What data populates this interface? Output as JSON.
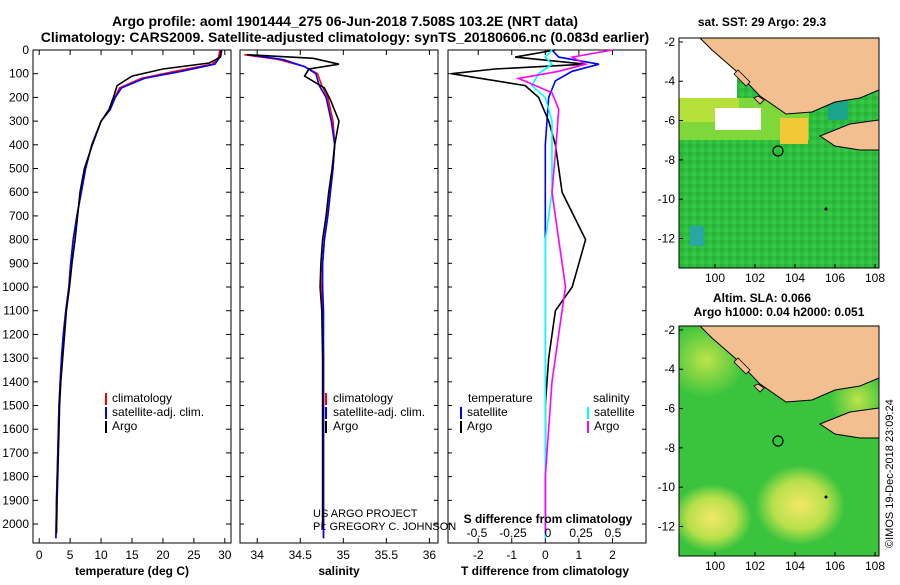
{
  "title_line1": "Argo profile: aoml 1901444_275 06-Jun-2018 7.508S 103.2E (NRT data)",
  "title_line2": "Climatology: CARS2009. Satellite-adjusted climatology: synTS_20180606.nc (0.083d earlier)",
  "project_line1": "US ARGO PROJECT",
  "project_line2": "PI: GREGORY C. JOHNSON",
  "imos_credit": "©IMOS 19-Dec-2018 23:09:24",
  "colors": {
    "climatology": "#ff0000",
    "satellite": "#0000ff",
    "argo": "#000000",
    "sal_satellite": "#00ffff",
    "sal_argo": "#ff00ff",
    "land": "#f4bf8f"
  },
  "chart_data": [
    {
      "type": "line",
      "panel": "temperature",
      "xlabel": "temperature (deg C)",
      "xlim": [
        -1,
        31
      ],
      "xticks": [
        0,
        5,
        10,
        15,
        20,
        25,
        30
      ],
      "ylim": [
        2080,
        0
      ],
      "yticks": [
        0,
        100,
        200,
        300,
        400,
        500,
        600,
        700,
        800,
        900,
        1000,
        1100,
        1200,
        1300,
        1400,
        1500,
        1600,
        1700,
        1800,
        1900,
        2000
      ],
      "legend": [
        "climatology",
        "satellite-adj. clim.",
        "Argo"
      ],
      "series": [
        {
          "name": "climatology",
          "x": [
            29.2,
            29.0,
            28.0,
            22.0,
            16.5,
            13.0,
            12.2,
            11.5,
            10.0,
            8.5,
            7.5,
            6.8,
            6.1,
            5.5,
            5.1,
            4.8,
            4.3,
            3.9,
            3.6,
            3.4,
            3.2,
            3.0,
            2.8,
            2.7
          ],
          "y": [
            0,
            30,
            60,
            90,
            120,
            160,
            200,
            250,
            300,
            400,
            500,
            600,
            700,
            800,
            900,
            1000,
            1100,
            1200,
            1300,
            1400,
            1500,
            1700,
            1900,
            2060
          ]
        },
        {
          "name": "satellite-adj. clim.",
          "x": [
            29.4,
            29.2,
            28.4,
            23.0,
            17.0,
            13.3,
            12.3,
            11.5,
            10.0,
            8.5,
            7.5,
            6.8,
            6.1,
            5.5,
            5.1,
            4.8,
            4.3,
            3.9,
            3.6,
            3.4,
            3.2,
            3.0,
            2.8,
            2.7
          ],
          "y": [
            0,
            30,
            60,
            90,
            120,
            160,
            200,
            250,
            300,
            400,
            500,
            600,
            700,
            800,
            900,
            1000,
            1100,
            1200,
            1300,
            1400,
            1500,
            1700,
            1900,
            2060
          ]
        },
        {
          "name": "Argo",
          "x": [
            29.5,
            29.3,
            27.5,
            20.0,
            15.0,
            12.6,
            12.0,
            11.3,
            10.0,
            8.6,
            7.3,
            6.6,
            6.2,
            5.8,
            5.3,
            4.9,
            4.4,
            4.1,
            3.8,
            3.5,
            3.3,
            3.1,
            2.9,
            2.8
          ],
          "y": [
            0,
            30,
            55,
            80,
            110,
            150,
            200,
            250,
            300,
            400,
            500,
            600,
            700,
            800,
            900,
            1000,
            1100,
            1200,
            1300,
            1400,
            1500,
            1700,
            1900,
            2040
          ]
        }
      ]
    },
    {
      "type": "line",
      "panel": "salinity",
      "xlabel": "salinity",
      "xlim": [
        33.8,
        36.1
      ],
      "xticks": [
        34,
        34.5,
        35,
        35.5,
        36
      ],
      "xtick_labels": [
        "34",
        "34.5",
        "35",
        "35.5",
        "36"
      ],
      "ylim": [
        2080,
        0
      ],
      "legend": [
        "climatology",
        "satellite-adj. clim.",
        "Argo"
      ],
      "series": [
        {
          "name": "climatology",
          "x": [
            33.85,
            34.25,
            34.55,
            34.7,
            34.75,
            34.82,
            34.88,
            34.9,
            34.88,
            34.85,
            34.82,
            34.78,
            34.76,
            34.75,
            34.76,
            34.77,
            34.77,
            34.77,
            34.77
          ],
          "y": [
            20,
            40,
            70,
            100,
            150,
            200,
            300,
            400,
            500,
            600,
            700,
            800,
            900,
            1000,
            1100,
            1300,
            1500,
            1800,
            2060
          ]
        },
        {
          "name": "satellite-adj. clim.",
          "x": [
            33.9,
            34.3,
            34.55,
            34.68,
            34.72,
            34.8,
            34.86,
            34.9,
            34.88,
            34.85,
            34.82,
            34.78,
            34.76,
            34.76,
            34.77,
            34.77,
            34.77,
            34.77,
            34.77
          ],
          "y": [
            20,
            40,
            70,
            100,
            150,
            200,
            300,
            400,
            500,
            600,
            700,
            800,
            900,
            1000,
            1100,
            1300,
            1500,
            1800,
            2060
          ]
        },
        {
          "name": "Argo",
          "x": [
            33.88,
            34.65,
            34.95,
            34.6,
            34.55,
            34.78,
            34.85,
            34.95,
            34.9,
            34.87,
            34.83,
            34.8,
            34.76,
            34.74,
            34.73,
            34.75,
            34.76,
            34.76,
            34.76,
            34.76
          ],
          "y": [
            20,
            35,
            60,
            80,
            110,
            160,
            210,
            300,
            400,
            500,
            600,
            700,
            800,
            900,
            1000,
            1100,
            1300,
            1500,
            1800,
            2020
          ]
        }
      ]
    },
    {
      "type": "line",
      "panel": "differences",
      "xlabel": "T difference from climatology",
      "xlabel_top": "S difference from climatology",
      "xlim": [
        -2.9,
        3.0
      ],
      "xticks": [
        -2,
        -1,
        0,
        1,
        2
      ],
      "xticks_salinity": [
        "-0.5",
        "-0.25",
        "0",
        "0.25",
        "0.5"
      ],
      "ylim": [
        2080,
        0
      ],
      "legend_temperature_title": "temperature",
      "legend_salinity_title": "salinity",
      "legend_items": [
        "satellite",
        "Argo"
      ],
      "series": [
        {
          "name": "temperature satellite",
          "x": [
            0.2,
            0.4,
            1.6,
            0.8,
            0.3,
            0.1,
            0.05,
            0,
            0,
            0,
            0,
            0,
            0,
            0,
            0
          ],
          "y": [
            0,
            30,
            60,
            90,
            130,
            200,
            300,
            400,
            600,
            800,
            1000,
            1200,
            1500,
            1800,
            2060
          ]
        },
        {
          "name": "temperature Argo",
          "x": [
            0.3,
            -0.9,
            1.2,
            -1.5,
            -2.8,
            -0.6,
            -0.2,
            0.1,
            0.3,
            0.5,
            1.2,
            0.8,
            0.3,
            0.1,
            0,
            0,
            0
          ],
          "y": [
            0,
            30,
            60,
            80,
            100,
            150,
            200,
            300,
            400,
            600,
            800,
            1000,
            1100,
            1300,
            1500,
            1800,
            2040
          ]
        },
        {
          "name": "salinity satellite",
          "x": [
            0.05,
            0.0,
            0.05,
            -0.05,
            -0.1,
            0.0,
            0.05,
            0.05,
            0.05,
            0,
            0,
            0,
            0
          ],
          "y": [
            0,
            30,
            60,
            100,
            150,
            200,
            300,
            400,
            600,
            800,
            1000,
            1500,
            2060
          ]
        },
        {
          "name": "salinity Argo",
          "x": [
            0.5,
            0.2,
            0.3,
            0.1,
            -0.2,
            0.05,
            0.1,
            0.08,
            0.05,
            0.1,
            0.15,
            0.1,
            0.05,
            0,
            0
          ],
          "y": [
            0,
            30,
            60,
            90,
            120,
            180,
            250,
            400,
            600,
            800,
            1000,
            1200,
            1400,
            1800,
            2040
          ]
        }
      ]
    },
    {
      "type": "heatmap",
      "panel": "sst_map",
      "title": "sat. SST: 29 Argo: 29.3",
      "xlim": [
        98.2,
        108.2
      ],
      "ylim": [
        -13.5,
        -1.8
      ],
      "xticks": [
        100,
        102,
        104,
        106,
        108
      ],
      "yticks": [
        -2,
        -4,
        -6,
        -8,
        -10,
        -12
      ],
      "profile_location": [
        103.2,
        -7.508
      ]
    },
    {
      "type": "heatmap",
      "panel": "sla_map",
      "title_line1": "Altim. SLA: 0.066",
      "title_line2": "Argo h1000: 0.04 h2000: 0.051",
      "xlim": [
        98.2,
        108.2
      ],
      "ylim": [
        -13.5,
        -1.8
      ],
      "xticks": [
        100,
        102,
        104,
        106,
        108
      ],
      "yticks": [
        -2,
        -4,
        -6,
        -8,
        -10,
        -12
      ],
      "profile_location": [
        103.2,
        -7.508
      ]
    }
  ]
}
